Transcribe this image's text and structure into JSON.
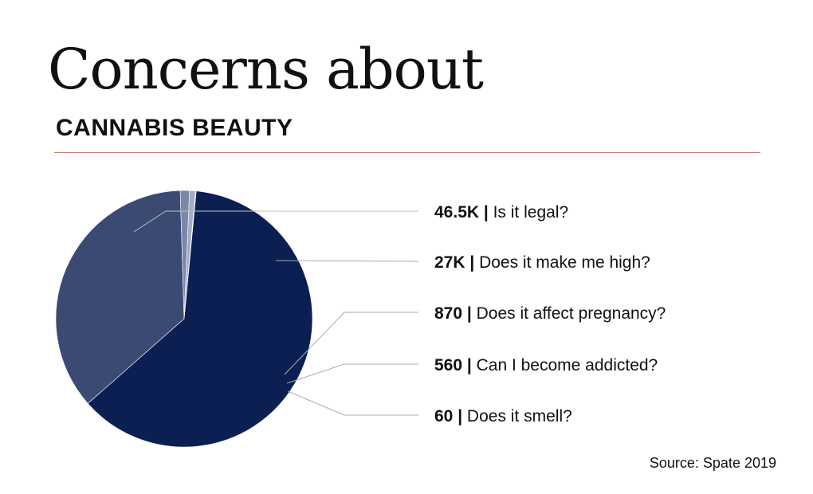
{
  "header": {
    "title": "Concerns about",
    "subtitle": "CANNABIS BEAUTY"
  },
  "footer": {
    "source": "Source: Spate 2019"
  },
  "colors": {
    "rule": "#c97a75",
    "leader": "#aaaaaa",
    "slices": [
      "#0b1f52",
      "#3a4a73",
      "#7c87a7",
      "#a3acc4",
      "#c6cbd9"
    ]
  },
  "chart_data": {
    "type": "pie",
    "title": "Concerns about CANNABIS BEAUTY",
    "slices": [
      {
        "label": "Is it legal?",
        "value": 46500,
        "value_label": "46.5K"
      },
      {
        "label": "Does it make me high?",
        "value": 27000,
        "value_label": "27K"
      },
      {
        "label": "Does it affect pregnancy?",
        "value": 870,
        "value_label": "870"
      },
      {
        "label": "Can I become addicted?",
        "value": 560,
        "value_label": "560"
      },
      {
        "label": "Does it smell?",
        "value": 60,
        "value_label": "60"
      }
    ],
    "legend_placement": "right",
    "separator": "|"
  }
}
